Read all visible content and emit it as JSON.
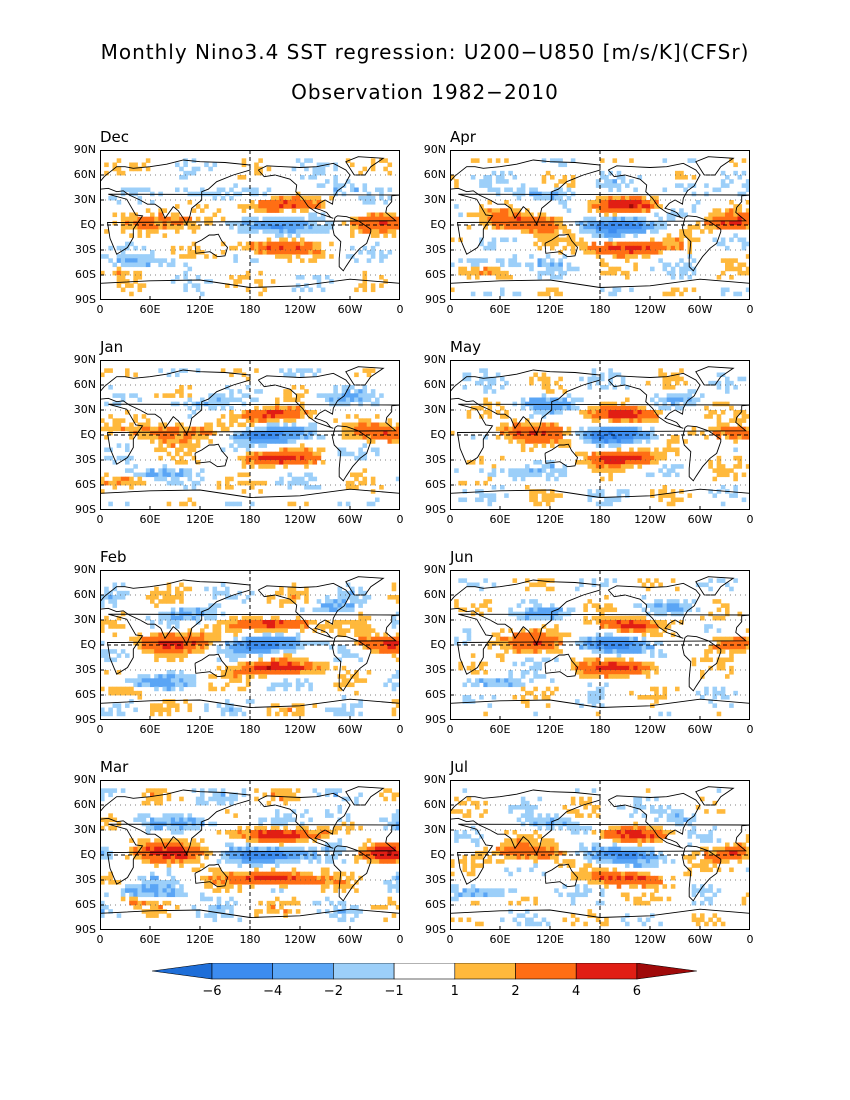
{
  "title": "Monthly Nino3.4 SST regression: U200−U850 [m/s/K](CFSr)",
  "subtitle": "Observation 1982−2010",
  "chart_data": {
    "type": "heatmap",
    "panels": [
      "Dec",
      "Jan",
      "Feb",
      "Mar",
      "Apr",
      "May",
      "Jun",
      "Jul"
    ],
    "y_ticks": [
      "90N",
      "60N",
      "30N",
      "EQ",
      "30S",
      "60S",
      "90S"
    ],
    "x_ticks": [
      "0",
      "60E",
      "120E",
      "180",
      "120W",
      "60W",
      "0"
    ],
    "lon_range": [
      0,
      360
    ],
    "lat_range": [
      -90,
      90
    ],
    "colorbar": {
      "levels": [
        -6,
        -4,
        -2,
        -1,
        1,
        2,
        4,
        6
      ],
      "labels": [
        "−6",
        "−4",
        "−2",
        "−1",
        "1",
        "2",
        "4",
        "6"
      ],
      "colors": [
        "#1e6ed8",
        "#3c8cf0",
        "#5aa5f5",
        "#9ccff9",
        "#ffffff",
        "#ffb93c",
        "#ff6e14",
        "#e11e14",
        "#a00a0a"
      ]
    },
    "units": "m/s/K"
  }
}
